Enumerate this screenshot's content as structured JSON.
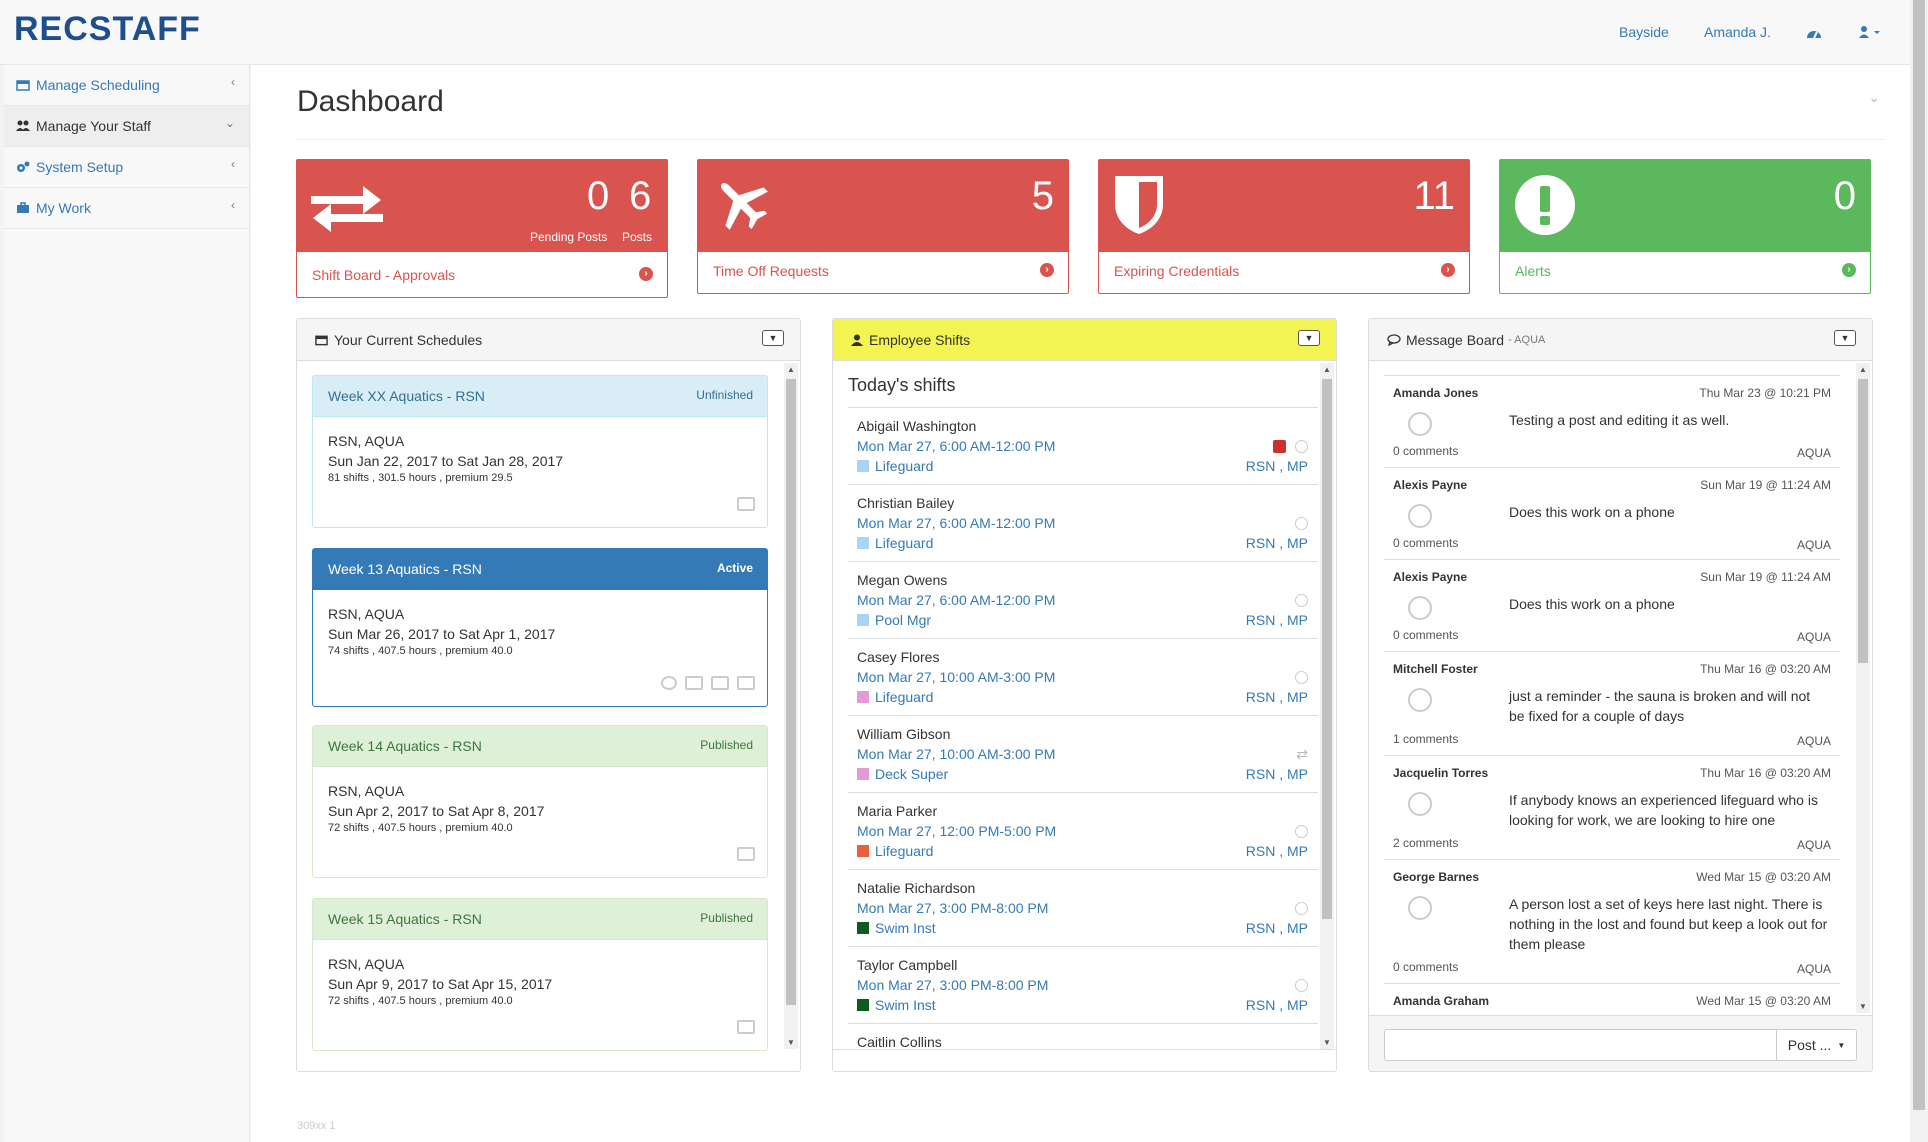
{
  "app": {
    "logo": "RECSTAFF"
  },
  "topnav": {
    "location": "Bayside",
    "user": "Amanda J.",
    "dashboard_icon": "dashboard-icon",
    "user_icon": "user-icon"
  },
  "sidebar": {
    "items": [
      {
        "label": "Manage Scheduling",
        "icon": "calendar-icon"
      },
      {
        "label": "Manage Your Staff",
        "icon": "users-icon"
      },
      {
        "label": "System Setup",
        "icon": "gears-icon"
      },
      {
        "label": "My Work",
        "icon": "briefcase-icon"
      }
    ]
  },
  "page": {
    "title": "Dashboard",
    "footer": "309xx 1"
  },
  "tiles": [
    {
      "value1": "0",
      "label1": "Pending Posts",
      "value2": "6",
      "label2": "Posts",
      "footer": "Shift Board - Approvals",
      "icon": "exchange-icon"
    },
    {
      "value": "5",
      "footer": "Time Off Requests",
      "icon": "plane-icon"
    },
    {
      "value": "11",
      "footer": "Expiring Credentials",
      "icon": "shield-icon"
    },
    {
      "value": "0",
      "footer": "Alerts",
      "icon": "exclamation-icon"
    }
  ],
  "schedules": {
    "title": "Your Current Schedules",
    "items": [
      {
        "name": "Week XX Aquatics - RSN",
        "status": "Unfinished",
        "location": "RSN, AQUA",
        "range": "Sun Jan 22, 2017 to Sat Jan 28, 2017",
        "stats": "81 shifts , 301.5 hours , premium 29.5"
      },
      {
        "name": "Week 13 Aquatics - RSN",
        "status": "Active",
        "location": "RSN, AQUA",
        "range": "Sun Mar 26, 2017 to Sat Apr 1, 2017",
        "stats": "74 shifts , 407.5 hours , premium 40.0"
      },
      {
        "name": "Week 14 Aquatics - RSN",
        "status": "Published",
        "location": "RSN, AQUA",
        "range": "Sun Apr 2, 2017 to Sat Apr 8, 2017",
        "stats": "72 shifts , 407.5 hours , premium 40.0"
      },
      {
        "name": "Week 15 Aquatics - RSN",
        "status": "Published",
        "location": "RSN, AQUA",
        "range": "Sun Apr 9, 2017 to Sat Apr 15, 2017",
        "stats": "72 shifts , 407.5 hours , premium 40.0"
      }
    ]
  },
  "shifts": {
    "title": "Employee Shifts",
    "subtitle": "Today's shifts",
    "items": [
      {
        "name": "Abigail Washington",
        "time": "Mon Mar 27, 6:00 AM-12:00 PM",
        "role": "Lifeguard",
        "color": "#a9d4f5",
        "loc": "RSN , MP"
      },
      {
        "name": "Christian Bailey",
        "time": "Mon Mar 27, 6:00 AM-12:00 PM",
        "role": "Lifeguard",
        "color": "#a9d4f5",
        "loc": "RSN , MP"
      },
      {
        "name": "Megan Owens",
        "time": "Mon Mar 27, 6:00 AM-12:00 PM",
        "role": "Pool Mgr",
        "color": "#a9d4f5",
        "loc": "RSN , MP"
      },
      {
        "name": "Casey Flores",
        "time": "Mon Mar 27, 10:00 AM-3:00 PM",
        "role": "Lifeguard",
        "color": "#e59ad8",
        "loc": "RSN , MP"
      },
      {
        "name": "William Gibson",
        "time": "Mon Mar 27, 10:00 AM-3:00 PM",
        "role": "Deck Super",
        "color": "#e59ad8",
        "loc": "RSN , MP"
      },
      {
        "name": "Maria Parker",
        "time": "Mon Mar 27, 12:00 PM-5:00 PM",
        "role": "Lifeguard",
        "color": "#e8603c",
        "loc": "RSN , MP"
      },
      {
        "name": "Natalie Richardson",
        "time": "Mon Mar 27, 3:00 PM-8:00 PM",
        "role": "Swim Inst",
        "color": "#0f5a1e",
        "loc": "RSN , MP"
      },
      {
        "name": "Taylor Campbell",
        "time": "Mon Mar 27, 3:00 PM-8:00 PM",
        "role": "Swim Inst",
        "color": "#0f5a1e",
        "loc": "RSN , MP"
      },
      {
        "name": "Caitlin Collins"
      }
    ]
  },
  "messages": {
    "title": "Message Board",
    "tag": "- AQUA",
    "post_label": "Post ...",
    "items": [
      {
        "author": "Amanda Jones",
        "date": "Thu Mar 23 @ 10:21 PM",
        "text": "Testing a post and editing it as well.",
        "comments": "0 comments",
        "tag": "AQUA"
      },
      {
        "author": "Alexis Payne",
        "date": "Sun Mar 19 @ 11:24 AM",
        "text": "Does this work on a phone",
        "comments": "0 comments",
        "tag": "AQUA"
      },
      {
        "author": "Alexis Payne",
        "date": "Sun Mar 19 @ 11:24 AM",
        "text": "Does this work on a phone",
        "comments": "0 comments",
        "tag": "AQUA"
      },
      {
        "author": "Mitchell Foster",
        "date": "Thu Mar 16 @ 03:20 AM",
        "text": "just a reminder - the sauna is broken and will not be fixed for a couple of days",
        "comments": "1 comments",
        "tag": "AQUA"
      },
      {
        "author": "Jacquelin Torres",
        "date": "Thu Mar 16 @ 03:20 AM",
        "text": "If anybody knows an experienced lifeguard who is looking for work, we are looking to hire one",
        "comments": "2 comments",
        "tag": "AQUA"
      },
      {
        "author": "George Barnes",
        "date": "Wed Mar 15 @ 03:20 AM",
        "text": "A person lost a set of keys here last night. There is nothing in the lost and found but keep a look out for them please",
        "comments": "0 comments",
        "tag": "AQUA"
      },
      {
        "author": "Amanda Graham",
        "date": "Wed Mar 15 @ 03:20 AM"
      }
    ]
  },
  "colors": {
    "red": "#d9534f",
    "green": "#5cb85c",
    "primary": "#337ab7",
    "yellow": "#f3f351"
  }
}
